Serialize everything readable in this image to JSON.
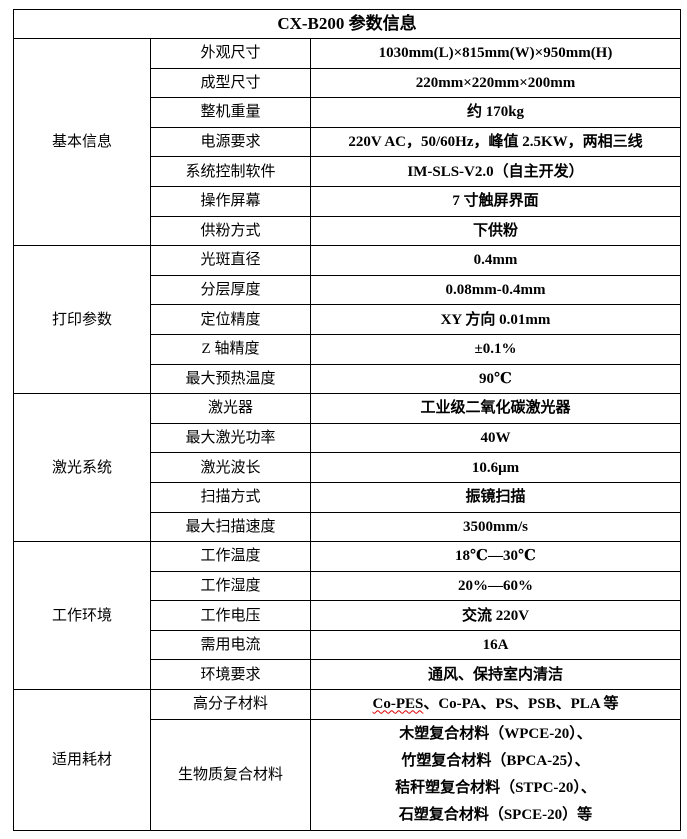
{
  "title": "CX-B200 参数信息",
  "groups": [
    {
      "name": "基本信息",
      "rows": [
        {
          "label": "外观尺寸",
          "value": "1030mm(L)×815mm(W)×950mm(H)"
        },
        {
          "label": "成型尺寸",
          "value": "220mm×220mm×200mm"
        },
        {
          "label": "整机重量",
          "value": "约 170kg"
        },
        {
          "label": "电源要求",
          "value": "220V AC，50/60Hz，峰值 2.5KW，两相三线"
        },
        {
          "label": "系统控制软件",
          "value": "IM-SLS-V2.0（自主开发）"
        },
        {
          "label": "操作屏幕",
          "value": "7 寸触屏界面"
        },
        {
          "label": "供粉方式",
          "value": "下供粉"
        }
      ]
    },
    {
      "name": "打印参数",
      "rows": [
        {
          "label": "光斑直径",
          "value": "0.4mm"
        },
        {
          "label": "分层厚度",
          "value": "0.08mm-0.4mm"
        },
        {
          "label": "定位精度",
          "value": "XY 方向 0.01mm"
        },
        {
          "label": "Z 轴精度",
          "value": "±0.1%"
        },
        {
          "label": "最大预热温度",
          "value": "90℃"
        }
      ]
    },
    {
      "name": "激光系统",
      "rows": [
        {
          "label": "激光器",
          "value": "工业级二氧化碳激光器"
        },
        {
          "label": "最大激光功率",
          "value": "40W"
        },
        {
          "label": "激光波长",
          "value": "10.6μm"
        },
        {
          "label": "扫描方式",
          "value": "振镜扫描"
        },
        {
          "label": "最大扫描速度",
          "value": "3500mm/s"
        }
      ]
    },
    {
      "name": "工作环境",
      "rows": [
        {
          "label": "工作温度",
          "value": "18℃—30℃"
        },
        {
          "label": "工作湿度",
          "value": "20%—60%"
        },
        {
          "label": "工作电压",
          "value": "交流 220V"
        },
        {
          "label": "需用电流",
          "value": "16A"
        },
        {
          "label": "环境要求",
          "value": "通风、保持室内清洁"
        }
      ]
    },
    {
      "name": "适用耗材",
      "rows": [
        {
          "label": "高分子材料",
          "value_first": "Co-PES",
          "value_rest": "、Co-PA、PS、PSB、PLA 等"
        },
        {
          "label": "生物质复合材料",
          "lines": [
            "木塑复合材料（WPCE-20）、",
            "竹塑复合材料（BPCA-25）、",
            "秸秆塑复合材料（STPC-20）、",
            "石塑复合材料（SPCE-20）等"
          ]
        }
      ]
    }
  ]
}
